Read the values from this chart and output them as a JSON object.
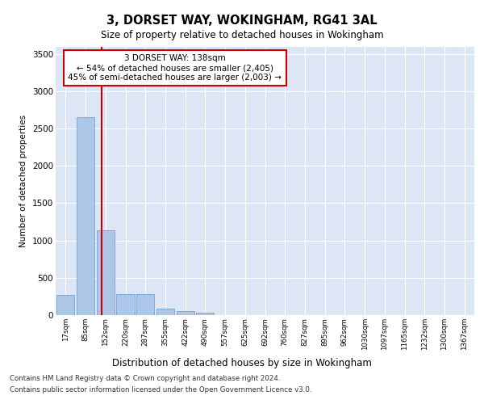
{
  "title1": "3, DORSET WAY, WOKINGHAM, RG41 3AL",
  "title2": "Size of property relative to detached houses in Wokingham",
  "xlabel": "Distribution of detached houses by size in Wokingham",
  "ylabel": "Number of detached properties",
  "bar_values": [
    270,
    2650,
    1140,
    280,
    280,
    90,
    55,
    35,
    0,
    0,
    0,
    0,
    0,
    0,
    0,
    0,
    0,
    0,
    0,
    0,
    0
  ],
  "categories": [
    "17sqm",
    "85sqm",
    "152sqm",
    "220sqm",
    "287sqm",
    "355sqm",
    "422sqm",
    "490sqm",
    "557sqm",
    "625sqm",
    "692sqm",
    "760sqm",
    "827sqm",
    "895sqm",
    "962sqm",
    "1030sqm",
    "1097sqm",
    "1165sqm",
    "1232sqm",
    "1300sqm",
    "1367sqm"
  ],
  "bar_color": "#aec6e8",
  "bar_edge_color": "#5b9bd5",
  "vline_color": "#cc0000",
  "annotation_text": "3 DORSET WAY: 138sqm\n← 54% of detached houses are smaller (2,405)\n45% of semi-detached houses are larger (2,003) →",
  "annotation_box_color": "#ffffff",
  "annotation_box_edge": "#cc0000",
  "ylim": [
    0,
    3600
  ],
  "yticks": [
    0,
    500,
    1000,
    1500,
    2000,
    2500,
    3000,
    3500
  ],
  "background_color": "#dce6f5",
  "grid_color": "#ffffff",
  "footer1": "Contains HM Land Registry data © Crown copyright and database right 2024.",
  "footer2": "Contains public sector information licensed under the Open Government Licence v3.0."
}
